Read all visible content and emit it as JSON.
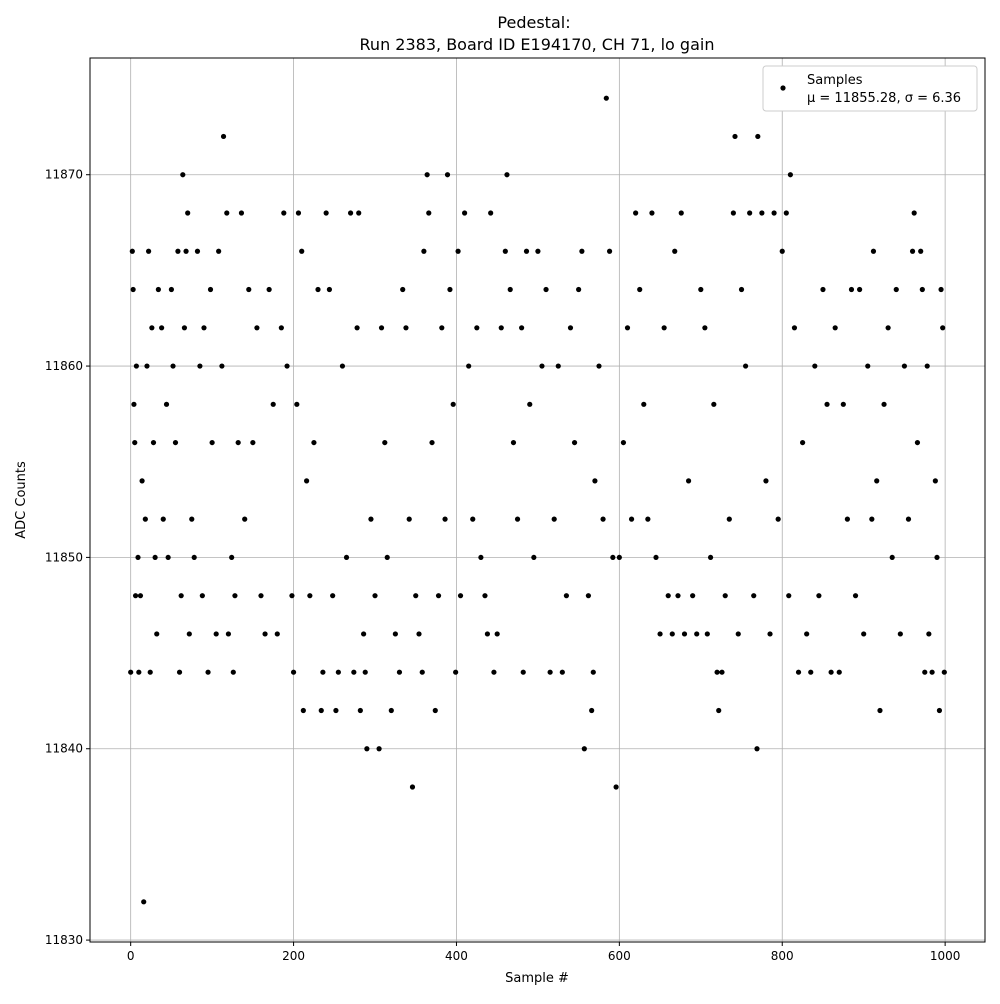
{
  "chart_data": {
    "type": "scatter",
    "title": "Pedestal:",
    "subtitle": "Run 2383, Board ID E194170, CH 71, lo gain",
    "x_label": "Sample #",
    "y_label": "ADC Counts",
    "xlim": [
      -49.95,
      1048.95
    ],
    "xticks": [
      0,
      200,
      400,
      600,
      800,
      1000
    ],
    "ylim": [
      11829.9,
      11876.1
    ],
    "yticks": [
      11830,
      11840,
      11850,
      11860,
      11870
    ],
    "grid": true,
    "legend": "upper right",
    "series": [
      {
        "name": "Samples",
        "label2": "μ = 11855.28, σ = 6.36",
        "color": "#000000",
        "x": [
          0,
          2,
          3,
          4,
          5,
          6,
          7,
          9,
          10,
          12,
          14,
          16,
          18,
          20,
          22,
          24,
          26,
          28,
          30,
          32,
          34,
          38,
          40,
          44,
          46,
          50,
          52,
          55,
          58,
          60,
          62,
          64,
          66,
          68,
          70,
          72,
          75,
          78,
          82,
          85,
          88,
          90,
          95,
          98,
          100,
          105,
          108,
          112,
          114,
          118,
          120,
          124,
          126,
          128,
          132,
          136,
          140,
          145,
          150,
          155,
          160,
          165,
          170,
          175,
          180,
          185,
          188,
          192,
          198,
          200,
          204,
          206,
          210,
          212,
          216,
          220,
          225,
          230,
          234,
          236,
          240,
          244,
          248,
          252,
          255,
          260,
          265,
          270,
          274,
          278,
          280,
          282,
          286,
          288,
          290,
          295,
          300,
          305,
          308,
          312,
          315,
          320,
          325,
          330,
          334,
          338,
          342,
          346,
          350,
          354,
          358,
          360,
          364,
          366,
          370,
          374,
          378,
          382,
          386,
          389,
          392,
          396,
          399,
          402,
          405,
          410,
          415,
          420,
          425,
          430,
          435,
          438,
          442,
          446,
          450,
          455,
          460,
          462,
          466,
          470,
          475,
          480,
          482,
          486,
          490,
          495,
          500,
          505,
          510,
          515,
          520,
          525,
          530,
          535,
          540,
          545,
          550,
          554,
          557,
          562,
          566,
          568,
          570,
          575,
          580,
          584,
          588,
          592,
          596,
          600,
          605,
          610,
          615,
          620,
          625,
          630,
          635,
          640,
          645,
          650,
          655,
          660,
          665,
          668,
          672,
          676,
          680,
          685,
          690,
          695,
          700,
          705,
          708,
          712,
          716,
          720,
          722,
          726,
          730,
          735,
          740,
          742,
          746,
          750,
          755,
          760,
          765,
          769,
          770,
          775,
          780,
          785,
          790,
          795,
          800,
          805,
          808,
          810,
          815,
          820,
          825,
          830,
          835,
          840,
          845,
          850,
          855,
          860,
          865,
          870,
          875,
          880,
          885,
          890,
          895,
          900,
          905,
          910,
          912,
          916,
          920,
          925,
          930,
          935,
          940,
          945,
          950,
          955,
          960,
          962,
          966,
          970,
          972,
          975,
          978,
          980,
          984,
          988,
          990,
          993,
          995,
          997,
          999
        ],
        "values": [
          11844,
          11866,
          11864,
          11858,
          11856,
          11848,
          11860,
          11850,
          11844,
          11848,
          11854,
          11832,
          11852,
          11860,
          11866,
          11844,
          11862,
          11856,
          11850,
          11846,
          11864,
          11862,
          11852,
          11858,
          11850,
          11864,
          11860,
          11856,
          11866,
          11844,
          11848,
          11870,
          11862,
          11866,
          11868,
          11846,
          11852,
          11850,
          11866,
          11860,
          11848,
          11862,
          11844,
          11864,
          11856,
          11846,
          11866,
          11860,
          11872,
          11868,
          11846,
          11850,
          11844,
          11848,
          11856,
          11868,
          11852,
          11864,
          11856,
          11862,
          11848,
          11846,
          11864,
          11858,
          11846,
          11862,
          11868,
          11860,
          11848,
          11844,
          11858,
          11868,
          11866,
          11842,
          11854,
          11848,
          11856,
          11864,
          11842,
          11844,
          11868,
          11864,
          11848,
          11842,
          11844,
          11860,
          11850,
          11868,
          11844,
          11862,
          11868,
          11842,
          11846,
          11844,
          11840,
          11852,
          11848,
          11840,
          11862,
          11856,
          11850,
          11842,
          11846,
          11844,
          11864,
          11862,
          11852,
          11838,
          11848,
          11846,
          11844,
          11866,
          11870,
          11868,
          11856,
          11842,
          11848,
          11862,
          11852,
          11870,
          11864,
          11858,
          11844,
          11866,
          11848,
          11868,
          11860,
          11852,
          11862,
          11850,
          11848,
          11846,
          11868,
          11844,
          11846,
          11862,
          11866,
          11870,
          11864,
          11856,
          11852,
          11862,
          11844,
          11866,
          11858,
          11850,
          11866,
          11860,
          11864,
          11844,
          11852,
          11860,
          11844,
          11848,
          11862,
          11856,
          11864,
          11866,
          11840,
          11848,
          11842,
          11844,
          11854,
          11860,
          11852,
          11874,
          11866,
          11850,
          11838,
          11850,
          11856,
          11862,
          11852,
          11868,
          11864,
          11858,
          11852,
          11868,
          11850,
          11846,
          11862,
          11848,
          11846,
          11866,
          11848,
          11868,
          11846,
          11854,
          11848,
          11846,
          11864,
          11862,
          11846,
          11850,
          11858,
          11844,
          11842,
          11844,
          11848,
          11852,
          11868,
          11872,
          11846,
          11864,
          11860,
          11868,
          11848,
          11840,
          11872,
          11868,
          11854,
          11846,
          11868,
          11852,
          11866,
          11868,
          11848,
          11870,
          11862,
          11844,
          11856,
          11846,
          11844,
          11860,
          11848,
          11864,
          11858,
          11844,
          11862,
          11844,
          11858,
          11852,
          11864,
          11848,
          11864,
          11846,
          11860,
          11852,
          11866,
          11854,
          11842,
          11858,
          11862,
          11850,
          11864,
          11846,
          11860,
          11852,
          11866,
          11868,
          11856,
          11866,
          11864,
          11844,
          11860,
          11846,
          11844,
          11854,
          11850,
          11842,
          11864,
          11862,
          11844
        ]
      }
    ]
  }
}
